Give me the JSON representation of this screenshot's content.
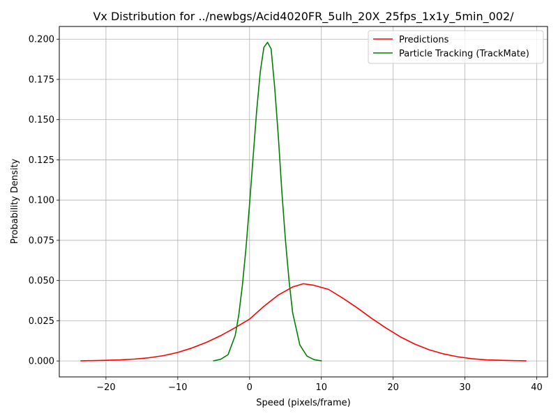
{
  "chart_data": {
    "type": "line",
    "title": "Vx Distribution for ../newbgs/Acid4020FR_5ulh_20X_25fps_1x1y_5min_002/",
    "xlabel": "Speed (pixels/frame)",
    "ylabel": "Probability Density",
    "xlim": [
      -26.5,
      41.5
    ],
    "ylim": [
      -0.0099,
      0.2079
    ],
    "xticks": [
      -20,
      -10,
      0,
      10,
      20,
      30,
      40
    ],
    "xtick_labels": [
      "−20",
      "−10",
      "0",
      "10",
      "20",
      "30",
      "40"
    ],
    "yticks": [
      0.0,
      0.025,
      0.05,
      0.075,
      0.1,
      0.125,
      0.15,
      0.175,
      0.2
    ],
    "ytick_labels": [
      "0.000",
      "0.025",
      "0.050",
      "0.075",
      "0.100",
      "0.125",
      "0.150",
      "0.175",
      "0.200"
    ],
    "grid": true,
    "legend_position": "top-right",
    "series": [
      {
        "name": "Predictions",
        "color": "#ff0000",
        "x": [
          -23.5,
          -22,
          -20,
          -18,
          -16,
          -14,
          -12,
          -10,
          -8,
          -6,
          -4,
          -2,
          0,
          2,
          4,
          6,
          7.5,
          9,
          11,
          13,
          15,
          17,
          19,
          21,
          23,
          25,
          27,
          29,
          31,
          33,
          35,
          37,
          38.5
        ],
        "y": [
          0.0001,
          0.0002,
          0.0004,
          0.0007,
          0.0012,
          0.002,
          0.0033,
          0.0053,
          0.0081,
          0.0116,
          0.0158,
          0.0207,
          0.026,
          0.034,
          0.041,
          0.046,
          0.048,
          0.047,
          0.0445,
          0.039,
          0.033,
          0.0265,
          0.0205,
          0.015,
          0.0105,
          0.007,
          0.0044,
          0.0026,
          0.0014,
          0.0007,
          0.0004,
          0.0002,
          0.0001
        ]
      },
      {
        "name": "Particle Tracking (TrackMate)",
        "color": "#008000",
        "x": [
          -5,
          -4,
          -3,
          -2,
          -1.5,
          -1,
          -0.5,
          0,
          0.5,
          1,
          1.5,
          2,
          2.5,
          3,
          3.5,
          4,
          4.5,
          5,
          5.5,
          6,
          7,
          8,
          9,
          10
        ],
        "y": [
          0.0001,
          0.0011,
          0.0039,
          0.0158,
          0.0287,
          0.047,
          0.07,
          0.0975,
          0.127,
          0.156,
          0.18,
          0.195,
          0.198,
          0.194,
          0.17,
          0.14,
          0.105,
          0.075,
          0.05,
          0.03,
          0.01,
          0.003,
          0.0008,
          0.0001
        ]
      }
    ]
  }
}
